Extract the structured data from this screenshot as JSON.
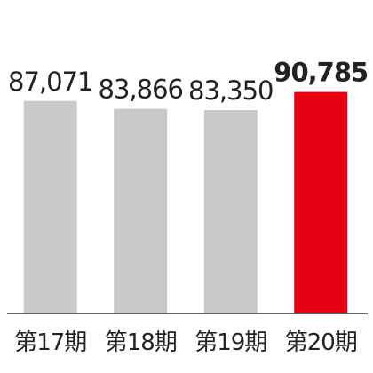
{
  "chart_data": {
    "type": "bar",
    "categories": [
      "第17期",
      "第18期",
      "第19期",
      "第20期"
    ],
    "values": [
      87071,
      83866,
      83350,
      90785
    ],
    "value_labels": [
      "87,071",
      "83,866",
      "83,350",
      "90,785"
    ],
    "colors": [
      "#c9c9c9",
      "#c9c9c9",
      "#c9c9c9",
      "#e60012"
    ],
    "ylim": [
      0,
      95000
    ]
  }
}
